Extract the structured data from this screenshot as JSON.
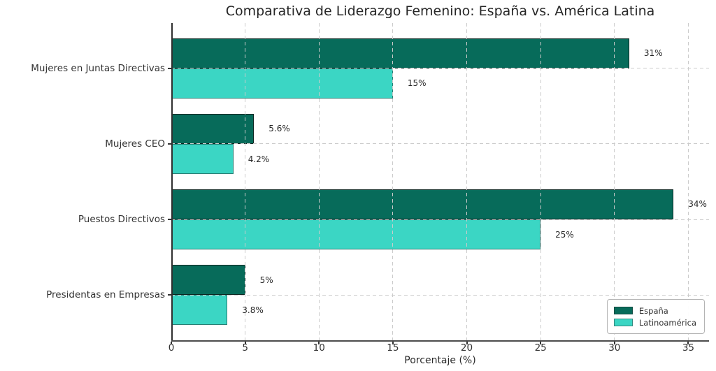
{
  "chart_data": {
    "type": "bar",
    "orientation": "horizontal",
    "title": "Comparativa de Liderazgo Femenino: España vs. América Latina",
    "xlabel": "Porcentaje (%)",
    "ylabel": "",
    "categories": [
      "Mujeres en Juntas Directivas",
      "Mujeres CEO",
      "Puestos Directivos",
      "Presidentas en Empresas"
    ],
    "series": [
      {
        "name": "España",
        "color": "#076B5A",
        "values": [
          31,
          5.6,
          34,
          5
        ],
        "value_labels": [
          "31%",
          "5.6%",
          "34%",
          "5%"
        ]
      },
      {
        "name": "Latinoamérica",
        "color": "#3BD6C4",
        "values": [
          15,
          4.2,
          25,
          3.8
        ],
        "value_labels": [
          "15%",
          "4.2%",
          "25%",
          "3.8%"
        ]
      }
    ],
    "xticks": [
      0,
      5,
      10,
      15,
      20,
      25,
      30,
      35
    ],
    "xlim": [
      0,
      36.4
    ],
    "grid": true,
    "grid_style": "dashed",
    "grid_over_bars": true,
    "legend_position": "lower right",
    "colors": {
      "grid": "#cbcbcb",
      "spine": "#333333",
      "text": "#262626",
      "background": "#ffffff"
    }
  }
}
